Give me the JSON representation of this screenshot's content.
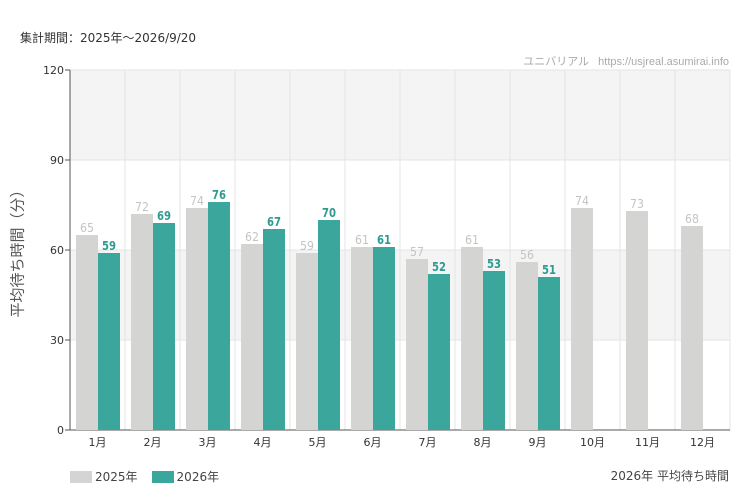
{
  "header": {
    "period": "集計期間：2025年〜2026/9/20",
    "site_name": "ユニバリアル",
    "site_url": "https://usjreal.asumirai.info"
  },
  "footer": {
    "caption": "2026年 平均待ち時間"
  },
  "colors": {
    "series_2025": "#d4d4d2",
    "series_2026": "#3aa69c",
    "label_2025": "#c4c4c2",
    "label_2026": "#2e9a90",
    "band": "#f4f4f4",
    "grid": "#e4e4e4"
  },
  "chart_data": {
    "type": "bar",
    "title": "",
    "xlabel": "",
    "ylabel": "平均待ち時間（分）",
    "ylim": [
      0,
      120
    ],
    "yticks": [
      0,
      30,
      60,
      90,
      120
    ],
    "grid": true,
    "legend_position": "bottom-left",
    "categories": [
      "1月",
      "2月",
      "3月",
      "4月",
      "5月",
      "6月",
      "7月",
      "8月",
      "9月",
      "10月",
      "11月",
      "12月"
    ],
    "series": [
      {
        "name": "2025年",
        "values": [
          65,
          72,
          74,
          62,
          59,
          61,
          57,
          61,
          56,
          74,
          73,
          68
        ]
      },
      {
        "name": "2026年",
        "values": [
          59,
          69,
          76,
          67,
          70,
          61,
          52,
          53,
          51,
          null,
          null,
          null
        ]
      }
    ]
  }
}
